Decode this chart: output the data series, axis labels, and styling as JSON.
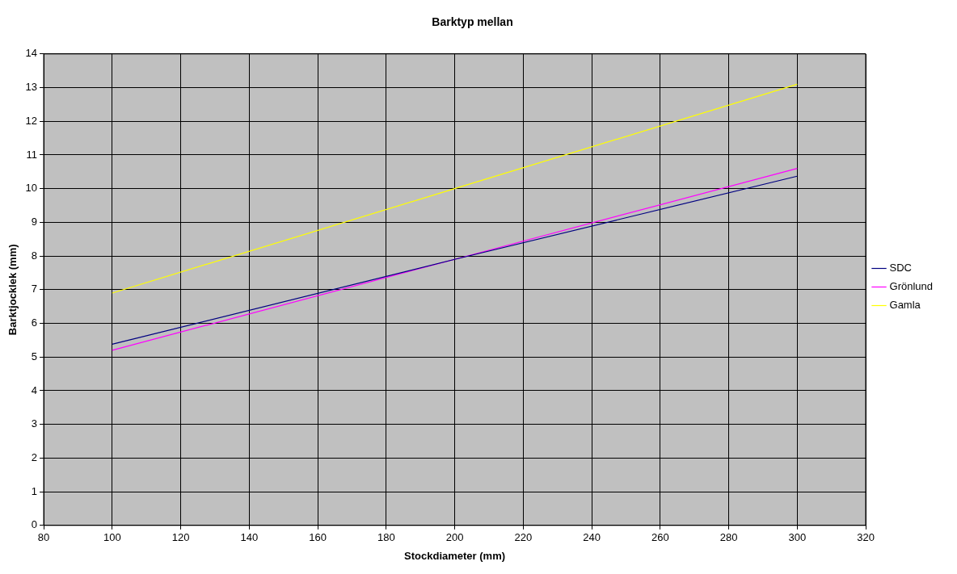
{
  "chart_data": {
    "type": "line",
    "title": "Barktyp mellan",
    "xlabel": "Stockdiameter (mm)",
    "ylabel": "Barktjocklek (mm)",
    "x": [
      100,
      200,
      300
    ],
    "series": [
      {
        "name": "SDC",
        "color": "#000080",
        "values": [
          5.38,
          7.9,
          10.37
        ]
      },
      {
        "name": "Grönlund",
        "color": "#ff00ff",
        "values": [
          5.2,
          7.9,
          10.6
        ]
      },
      {
        "name": "Gamla",
        "color": "#ffff00",
        "values": [
          6.9,
          10.0,
          13.1
        ]
      }
    ],
    "xlim": [
      80,
      320
    ],
    "xticks": [
      80,
      100,
      120,
      140,
      160,
      180,
      200,
      220,
      240,
      260,
      280,
      300,
      320
    ],
    "ylim": [
      0,
      14
    ],
    "yticks": [
      0,
      1,
      2,
      3,
      4,
      5,
      6,
      7,
      8,
      9,
      10,
      11,
      12,
      13,
      14
    ],
    "grid": true,
    "legend": "right",
    "marker": "none",
    "line_style": "solid"
  }
}
